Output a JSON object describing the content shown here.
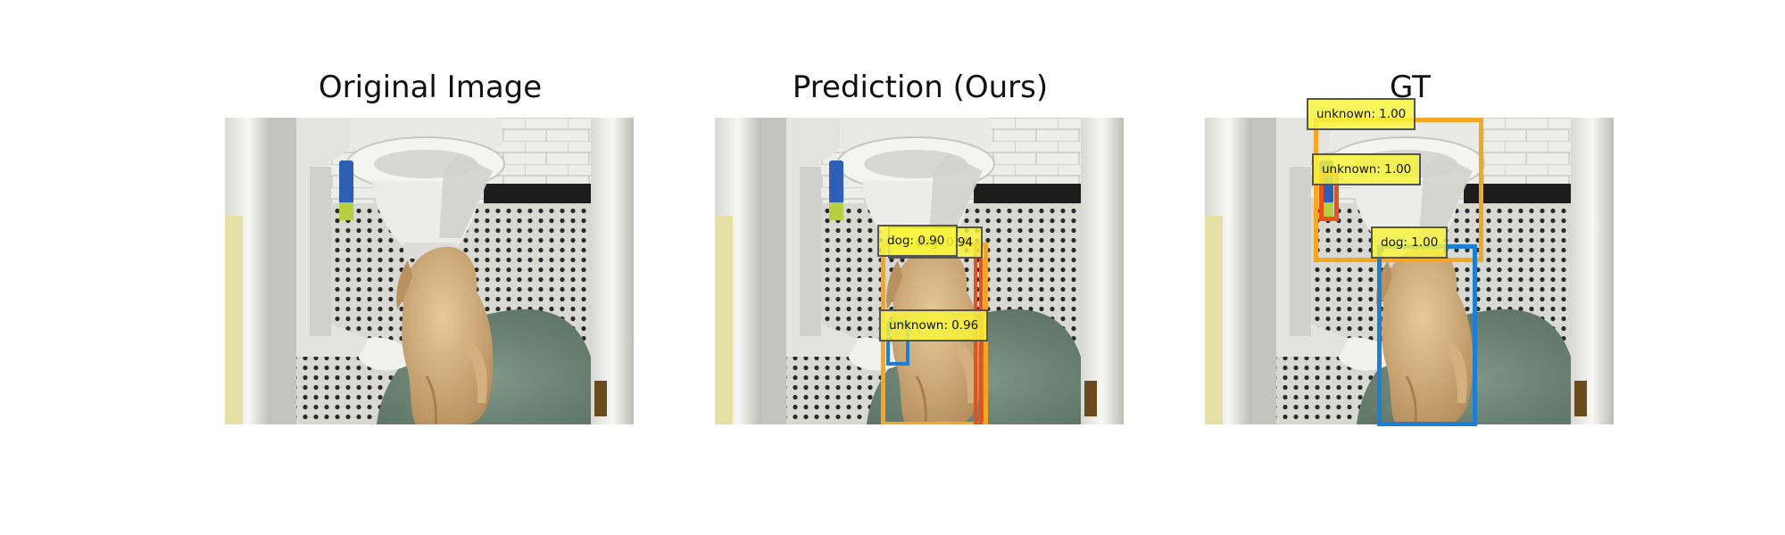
{
  "titles": {
    "original": "Original Image",
    "prediction": "Prediction (Ours)",
    "gt": "GT"
  },
  "prediction_labels": {
    "dog_back": "dog: 0.94",
    "dog_front": "dog: 0.90",
    "unknown": "unknown: 0.96"
  },
  "gt_labels": {
    "unknown_top": "unknown: 1.00",
    "unknown_mid": "unknown: 1.00",
    "dog": "dog: 1.00"
  },
  "colors": {
    "orange_box": "#f5a623",
    "red_box": "#e8501c",
    "blue_box": "#1c7fd1",
    "label_fill": "#f8f43c"
  }
}
